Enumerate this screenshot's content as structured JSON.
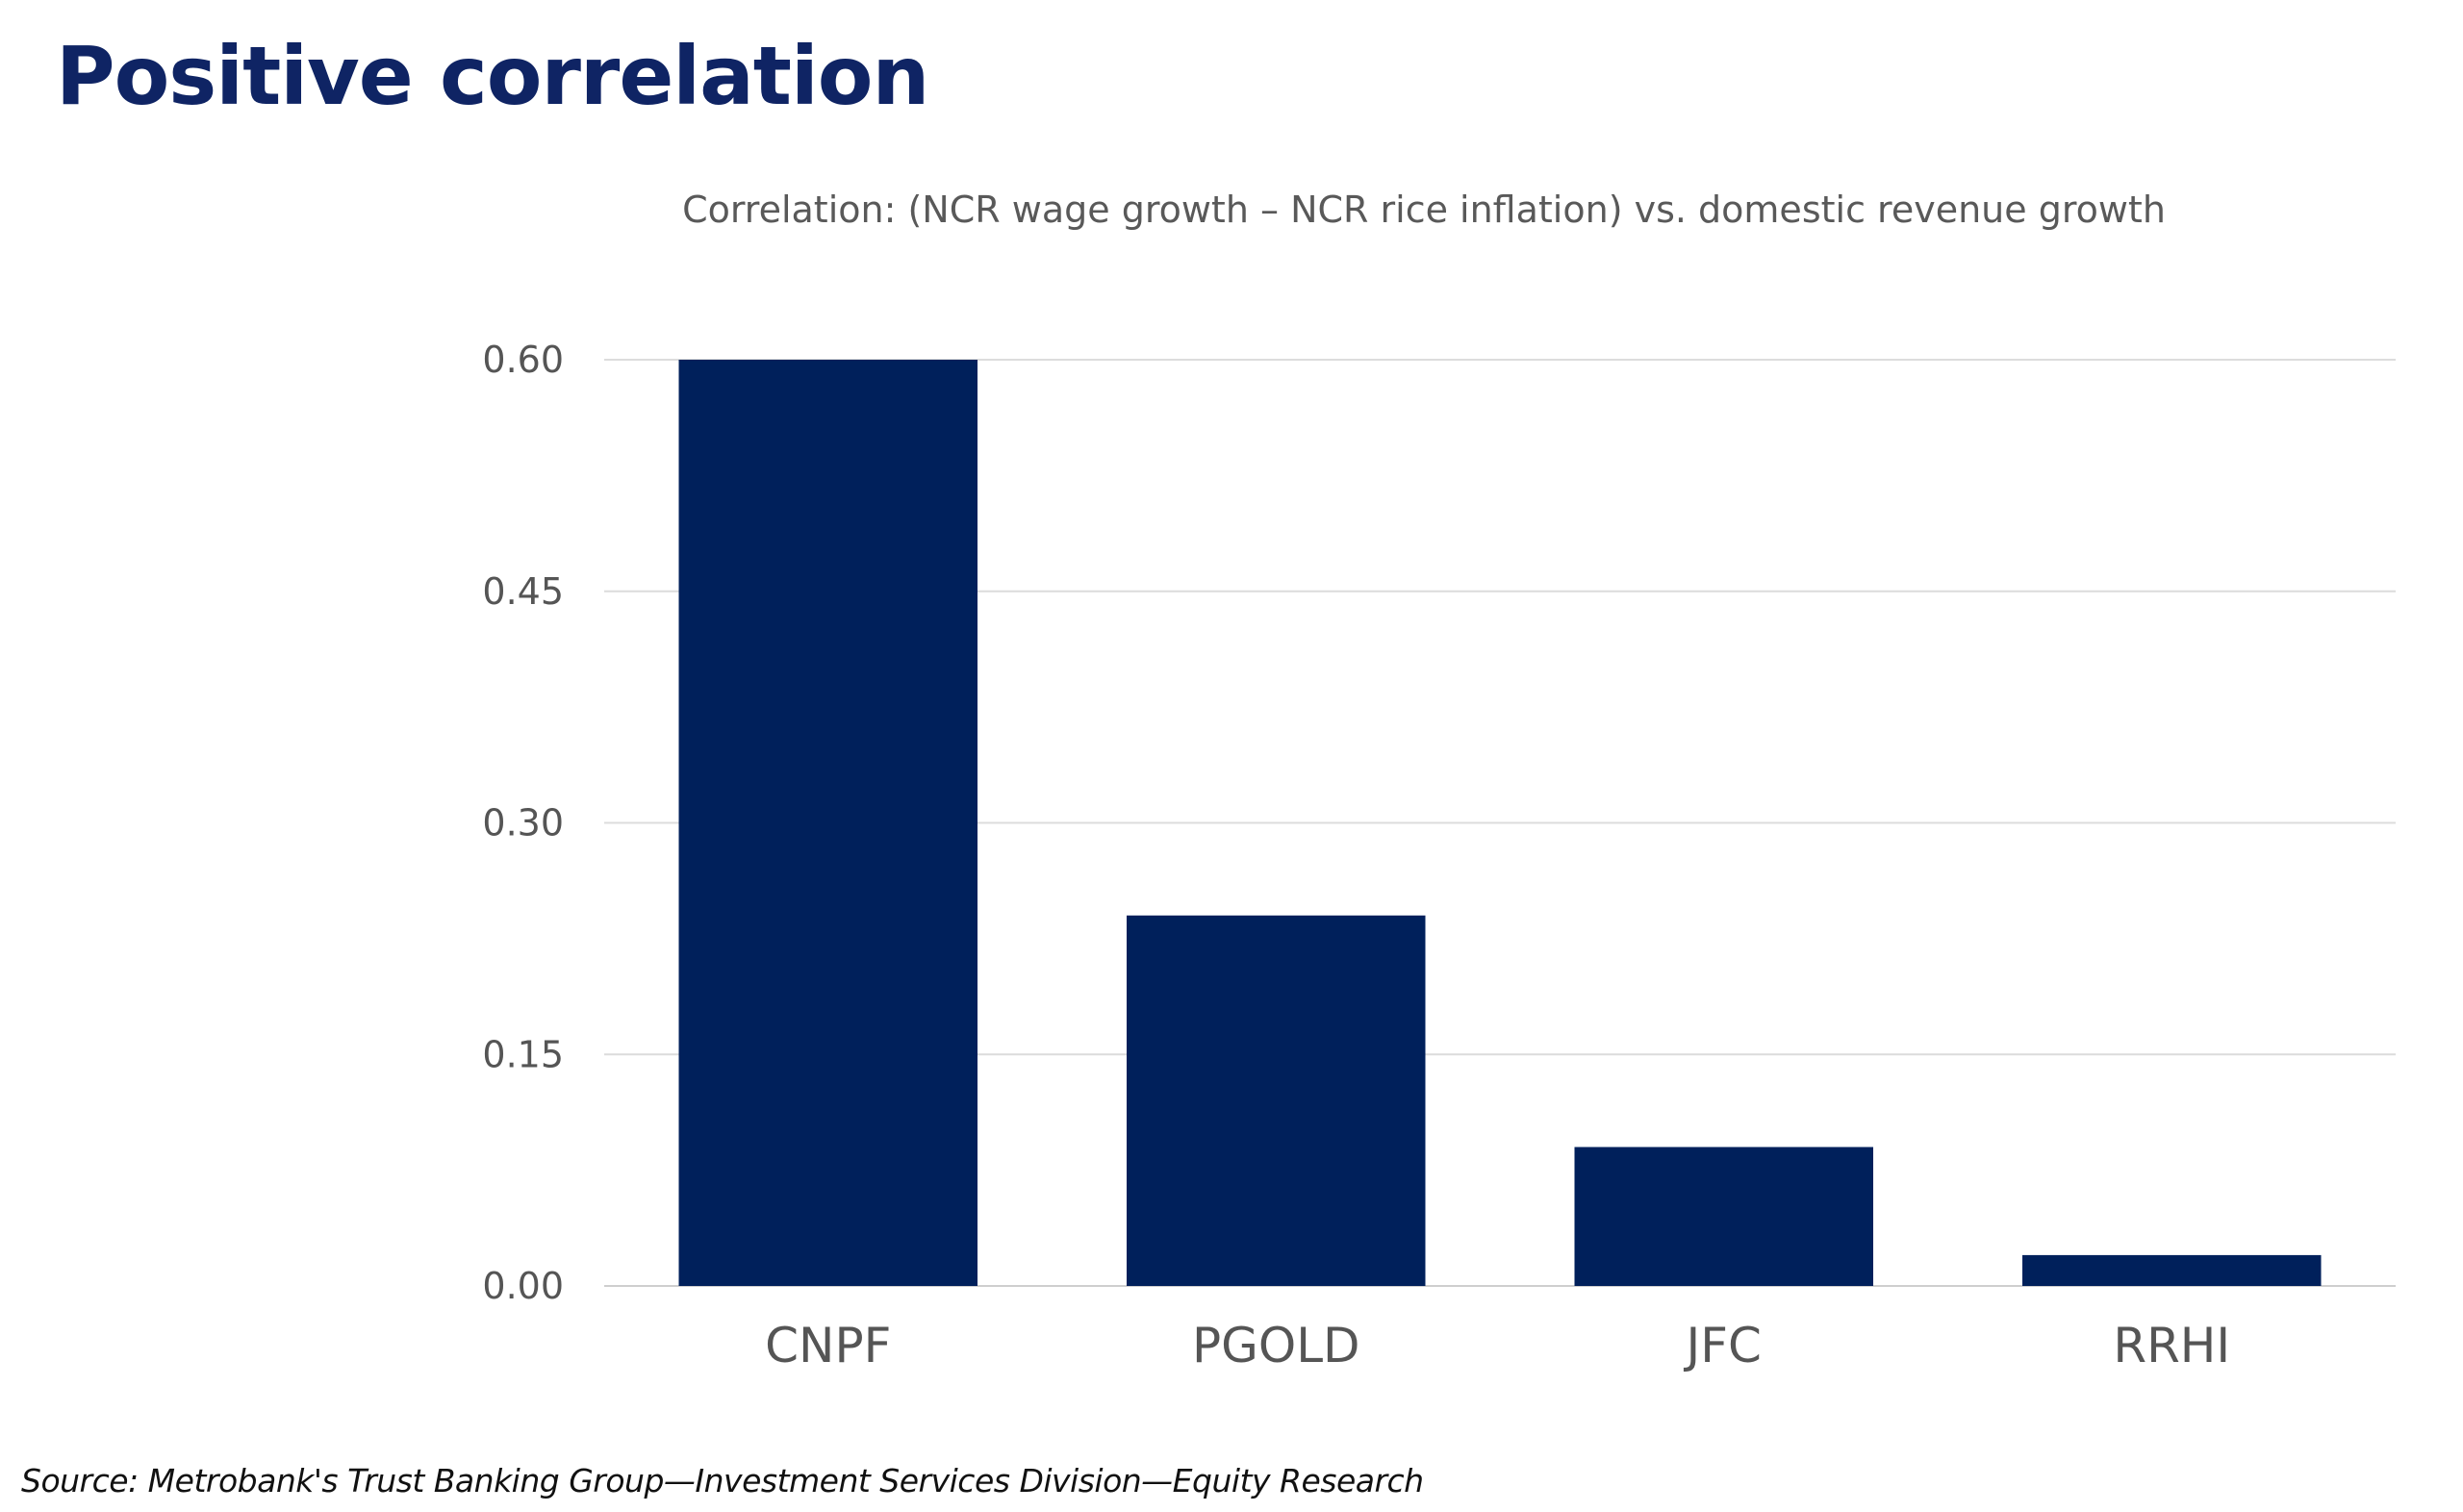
{
  "page": {
    "title": "Positive correlation",
    "source": "Source: Metrobank's Trust Banking Group—Investment Services Division—Equity Research"
  },
  "chart_data": {
    "type": "bar",
    "title": "Correlation: (NCR wage growth – NCR rice inflation) vs. domestic revenue growth",
    "xlabel": "",
    "ylabel": "",
    "categories": [
      "CNPF",
      "PGOLD",
      "JFC",
      "RRHI"
    ],
    "values": [
      0.6,
      0.24,
      0.09,
      0.02
    ],
    "ylim": [
      0,
      0.6
    ],
    "yticks": [
      "0.00",
      "0.15",
      "0.30",
      "0.45",
      "0.60"
    ],
    "grid": true,
    "legend": "none",
    "bar_color": "#00205b"
  }
}
